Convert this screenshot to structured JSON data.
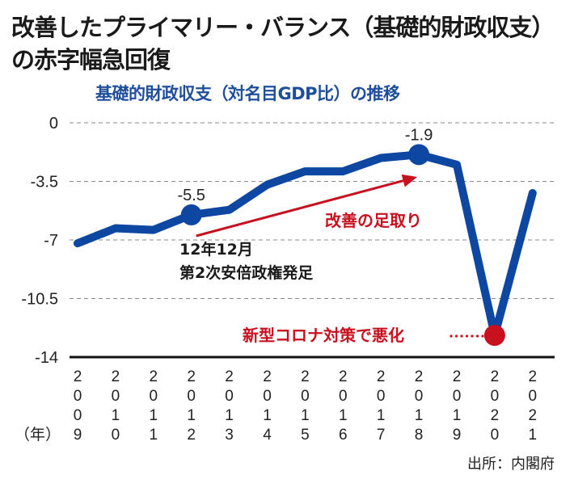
{
  "header": {
    "title_line1": "改善したプライマリー・バランス（基礎的財政収支）",
    "title_line2": "の赤字幅急回復",
    "subtitle": "基礎的財政収支（対名目GDP比）の推移"
  },
  "colors": {
    "line": "#0d47a1",
    "highlight_red": "#c8101e",
    "grid": "#888888",
    "axis": "#111111"
  },
  "chart_data": {
    "type": "line",
    "title": "基礎的財政収支（対名目GDP比）の推移",
    "xlabel": "（年）",
    "ylabel": "",
    "x": [
      "2009",
      "2010",
      "2011",
      "2012",
      "2013",
      "2014",
      "2015",
      "2016",
      "2017",
      "2018",
      "2019",
      "2020",
      "2021"
    ],
    "x_tick_digits": [
      [
        "2",
        "0",
        "0",
        "9"
      ],
      [
        "2",
        "0",
        "1",
        "0"
      ],
      [
        "2",
        "0",
        "1",
        "1"
      ],
      [
        "2",
        "0",
        "1",
        "2"
      ],
      [
        "2",
        "0",
        "1",
        "3"
      ],
      [
        "2",
        "0",
        "1",
        "4"
      ],
      [
        "2",
        "0",
        "1",
        "5"
      ],
      [
        "2",
        "0",
        "1",
        "6"
      ],
      [
        "2",
        "0",
        "1",
        "7"
      ],
      [
        "2",
        "0",
        "1",
        "8"
      ],
      [
        "2",
        "0",
        "1",
        "9"
      ],
      [
        "2",
        "0",
        "2",
        "0"
      ],
      [
        "2",
        "0",
        "2",
        "1"
      ]
    ],
    "series": [
      {
        "name": "基礎的財政収支（対名目GDP比）",
        "values": [
          -7.2,
          -6.3,
          -6.4,
          -5.5,
          -5.2,
          -3.7,
          -2.9,
          -2.9,
          -2.1,
          -1.9,
          -2.5,
          -12.7,
          -4.2
        ]
      }
    ],
    "ylim": [
      -14,
      0
    ],
    "yticks": [
      0,
      -3.5,
      -7,
      -10.5,
      -14
    ],
    "ytick_labels": [
      "0",
      "-3.5",
      "-7",
      "-10.5",
      "-14"
    ],
    "grid": true,
    "highlighted_points": [
      {
        "x": "2012",
        "value": -5.5,
        "label": "-5.5",
        "color": "blue"
      },
      {
        "x": "2018",
        "value": -1.9,
        "label": "-1.9",
        "color": "blue"
      },
      {
        "x": "2020",
        "value": -12.7,
        "label": "",
        "color": "red"
      }
    ],
    "annotations": {
      "abe_line1": "12年12月",
      "abe_line2": "第2次安倍政権発足",
      "improvement": "改善の足取り",
      "corona": "新型コロナ対策で悪化",
      "corona_leader": "……"
    },
    "arrow": {
      "from_x": "2012",
      "to_x": "2018"
    },
    "source": "出所：内閣府"
  }
}
